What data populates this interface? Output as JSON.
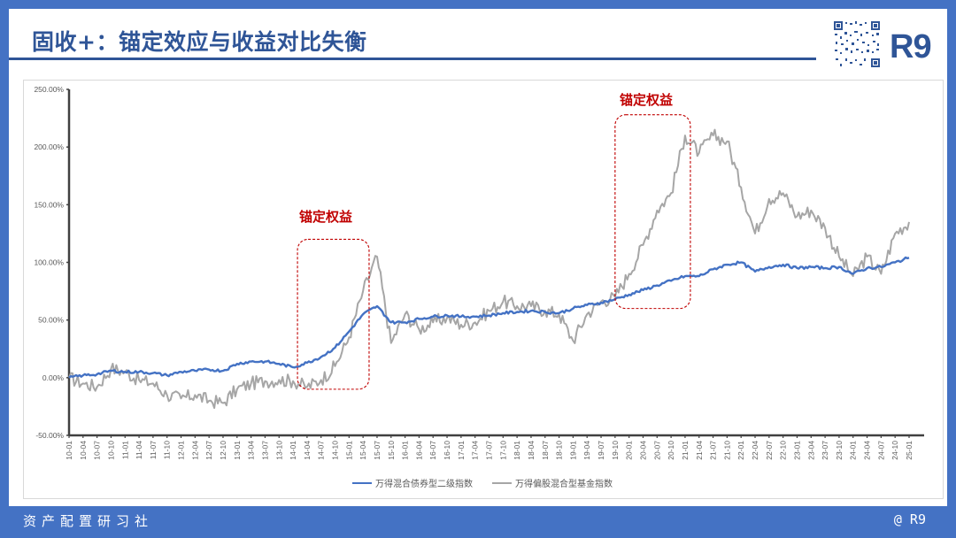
{
  "header": {
    "title": "固收+：锚定效应与收益对比失衡",
    "brand": "R9",
    "qr_code": "qr-code"
  },
  "footer": {
    "left": "资产配置研习社",
    "right": "@ R9"
  },
  "annotations": [
    {
      "label": "锚定权益",
      "period": "14-01 to 15-07"
    },
    {
      "label": "锚定权益",
      "period": "19-10 to 21-01"
    }
  ],
  "colors": {
    "frame": "#4472c4",
    "title": "#2f5597",
    "bond_series": "#4472c4",
    "equity_series": "#a6a6a6",
    "annotation": "#c00000"
  },
  "chart_data": {
    "type": "line",
    "title": "",
    "xlabel": "",
    "ylabel": "",
    "ylim": [
      -50,
      250
    ],
    "y_ticks": [
      "-50.00%",
      "0.00%",
      "50.00%",
      "100.00%",
      "150.00%",
      "200.00%",
      "250.00%"
    ],
    "grid": false,
    "legend_position": "bottom",
    "categories": [
      "10-01",
      "10-04",
      "10-07",
      "10-10",
      "11-01",
      "11-04",
      "11-07",
      "11-10",
      "12-01",
      "12-04",
      "12-07",
      "12-10",
      "13-01",
      "13-04",
      "13-07",
      "13-10",
      "14-01",
      "14-04",
      "14-07",
      "14-10",
      "15-01",
      "15-04",
      "15-07",
      "15-10",
      "16-01",
      "16-04",
      "16-07",
      "16-10",
      "17-01",
      "17-04",
      "17-07",
      "17-10",
      "18-01",
      "18-04",
      "18-07",
      "18-10",
      "19-01",
      "19-04",
      "19-07",
      "19-10",
      "20-01",
      "20-04",
      "20-07",
      "20-10",
      "21-01",
      "21-04",
      "21-07",
      "21-10",
      "22-01",
      "22-04",
      "22-07",
      "22-10",
      "23-01",
      "23-04",
      "23-07",
      "23-10",
      "24-01",
      "24-04",
      "24-07",
      "24-10",
      "25-01"
    ],
    "series": [
      {
        "name": "万得混合债券型二级指数",
        "values": [
          0,
          2,
          3,
          6,
          5,
          5,
          4,
          2,
          5,
          6,
          7,
          6,
          12,
          14,
          14,
          12,
          9,
          13,
          18,
          26,
          40,
          55,
          62,
          48,
          48,
          51,
          53,
          54,
          53,
          53,
          54,
          56,
          57,
          58,
          57,
          56,
          60,
          63,
          65,
          68,
          72,
          76,
          80,
          84,
          88,
          88,
          94,
          98,
          100,
          92,
          96,
          98,
          95,
          96,
          95,
          96,
          90,
          95,
          96,
          100,
          104
        ]
      },
      {
        "name": "万得偏股混合型基金指数",
        "values": [
          0,
          -5,
          -8,
          8,
          5,
          -2,
          -5,
          -15,
          -18,
          -15,
          -20,
          -22,
          -10,
          -5,
          -3,
          -2,
          -3,
          -8,
          -2,
          10,
          35,
          75,
          105,
          30,
          55,
          42,
          48,
          52,
          46,
          48,
          58,
          66,
          62,
          62,
          58,
          55,
          32,
          55,
          66,
          70,
          90,
          115,
          145,
          160,
          210,
          195,
          210,
          205,
          165,
          125,
          155,
          160,
          140,
          145,
          130,
          105,
          88,
          105,
          90,
          125,
          135
        ]
      }
    ],
    "highlight_boxes": [
      {
        "label": "锚定权益",
        "x_start": "14-01",
        "x_end": "15-07",
        "y_min": -10,
        "y_max": 120
      },
      {
        "label": "锚定权益",
        "x_start": "19-10",
        "x_end": "21-01",
        "y_min": 60,
        "y_max": 228
      }
    ]
  }
}
